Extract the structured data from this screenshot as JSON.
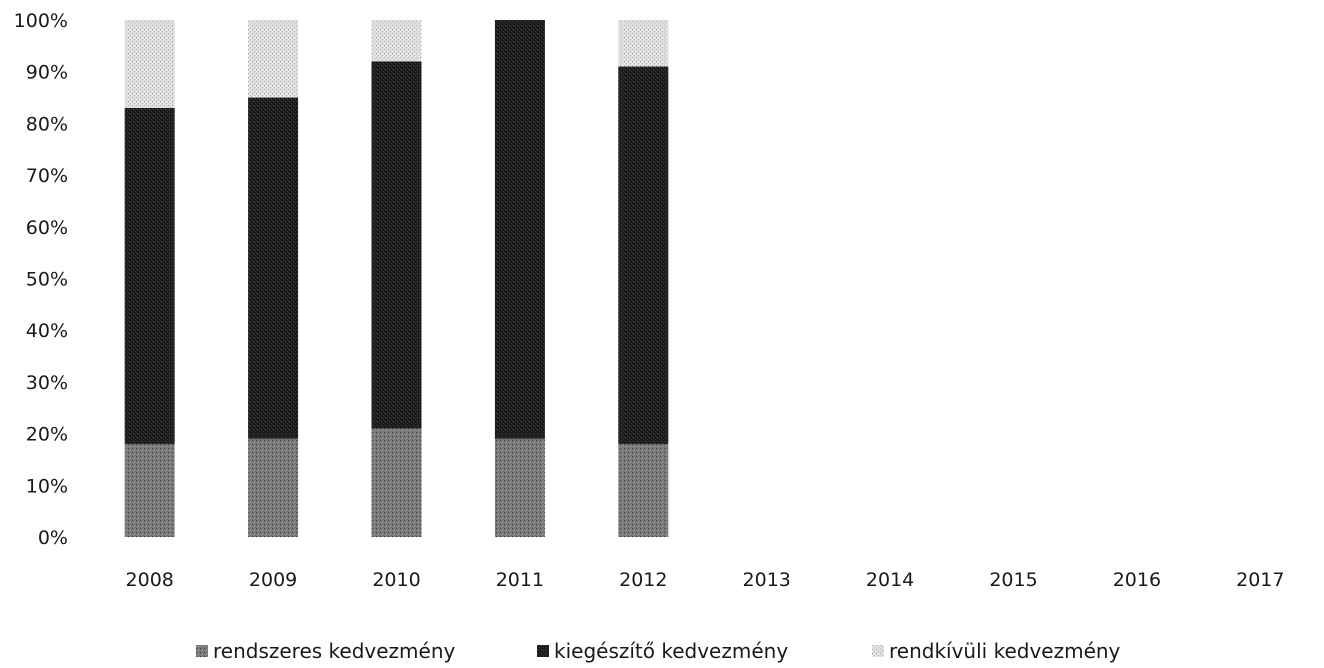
{
  "chart_data": {
    "type": "bar",
    "stacked": true,
    "percent": true,
    "categories": [
      "2008",
      "2009",
      "2010",
      "2011",
      "2012",
      "2013",
      "2014",
      "2015",
      "2016",
      "2017"
    ],
    "series": [
      {
        "name": "rendszeres kedvezmény",
        "color": "#6e6e6e",
        "values": [
          18,
          19,
          21,
          19,
          18,
          null,
          null,
          null,
          null,
          null
        ]
      },
      {
        "name": "kiegészítő kedvezmény",
        "color": "#1c1c1c",
        "values": [
          65,
          66,
          71,
          81,
          73,
          null,
          null,
          null,
          null,
          null
        ]
      },
      {
        "name": "rendkívüli kedvezmény",
        "color": "#d4d4d4",
        "values": [
          17,
          15,
          8,
          0,
          9,
          null,
          null,
          null,
          null,
          null
        ]
      }
    ],
    "ylim": [
      0,
      100
    ],
    "y_ticks": [
      "0%",
      "10%",
      "20%",
      "30%",
      "40%",
      "50%",
      "60%",
      "70%",
      "80%",
      "90%",
      "100%"
    ],
    "legend_position": "bottom",
    "grid": false
  }
}
